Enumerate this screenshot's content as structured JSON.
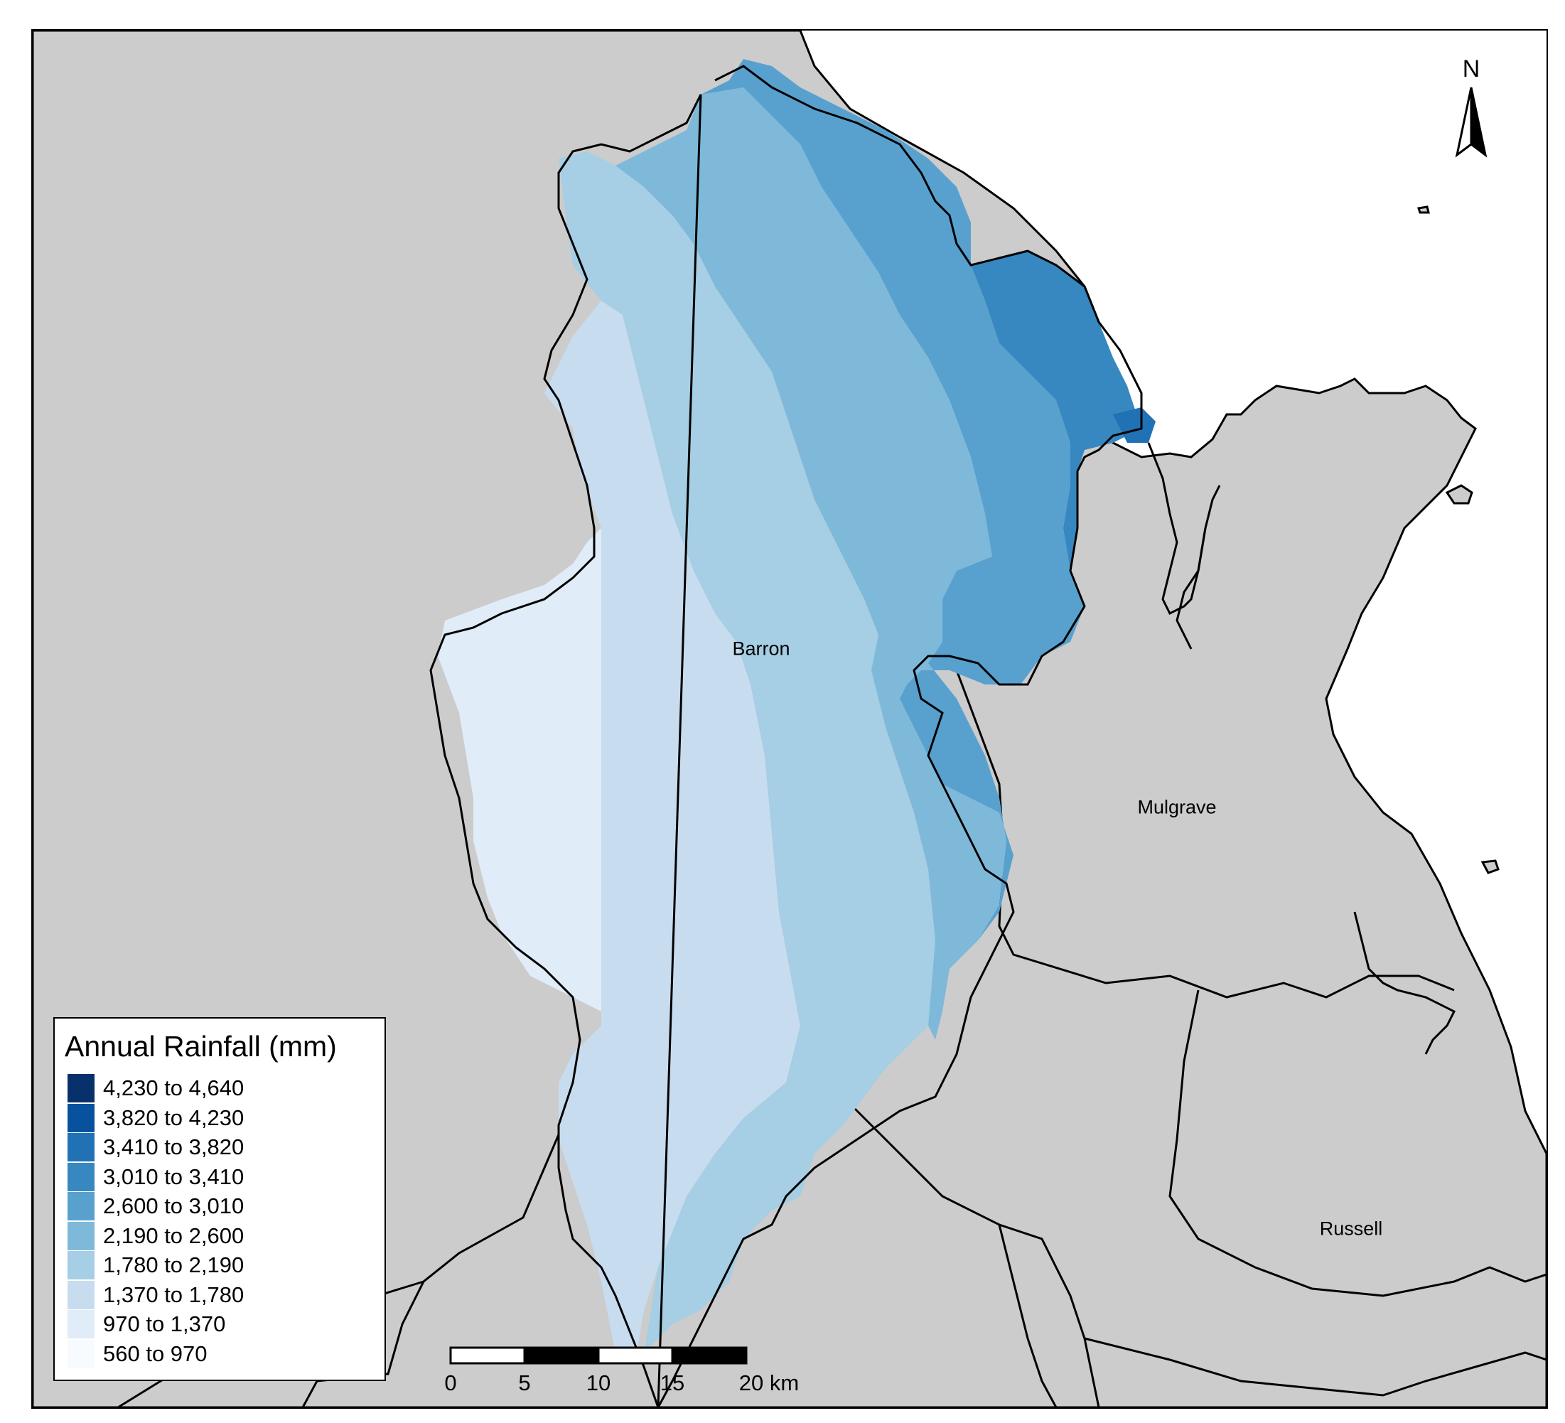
{
  "map": {
    "regions": [
      {
        "id": "barron",
        "label": "Barron"
      },
      {
        "id": "mulgrave",
        "label": "Mulgrave"
      },
      {
        "id": "russell",
        "label": "Russell"
      }
    ],
    "colors": {
      "land": "#cccccc",
      "sea": "#ffffff",
      "outline": "#000000"
    }
  },
  "north_arrow": {
    "label": "N"
  },
  "scale_bar": {
    "ticks": [
      "0",
      "5",
      "10",
      "15",
      "20 km"
    ],
    "unit": "km"
  },
  "legend": {
    "title": "Annual Rainfall (mm)",
    "classes": [
      {
        "label": "4,230 to 4,640",
        "color": "#08306b"
      },
      {
        "label": "3,820 to 4,230",
        "color": "#08519c"
      },
      {
        "label": "3,410 to 3,820",
        "color": "#2171b5"
      },
      {
        "label": "3,010 to 3,410",
        "color": "#3787c0"
      },
      {
        "label": "2,600 to 3,010",
        "color": "#58a1cf"
      },
      {
        "label": "2,190 to 2,600",
        "color": "#7fb9da"
      },
      {
        "label": "1,780 to 2,190",
        "color": "#a6cee4"
      },
      {
        "label": "1,370 to 1,780",
        "color": "#c8dcf0"
      },
      {
        "label": "970 to 1,370",
        "color": "#e0ecf7"
      },
      {
        "label": "560 to 970",
        "color": "#f7fbff"
      }
    ]
  }
}
